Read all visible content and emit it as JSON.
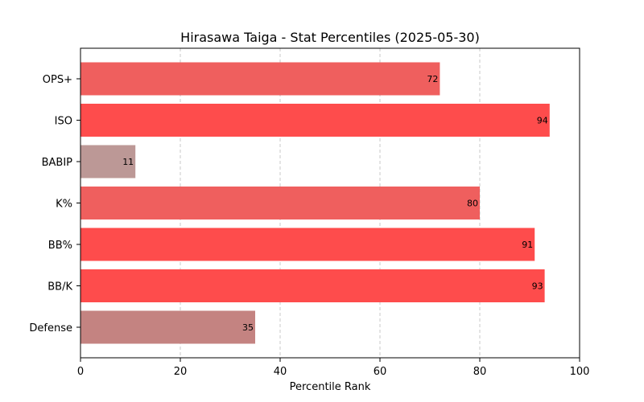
{
  "chart_data": {
    "type": "bar",
    "orientation": "horizontal",
    "title": "Hirasawa Taiga - Stat Percentiles (2025-05-30)",
    "xlabel": "Percentile Rank",
    "ylabel": "",
    "xlim": [
      0,
      100
    ],
    "x_ticks": [
      0,
      20,
      40,
      60,
      80,
      100
    ],
    "grid": "x-dashed",
    "categories": [
      "OPS+",
      "ISO",
      "BABIP",
      "K%",
      "BB%",
      "BB/K",
      "Defense"
    ],
    "values": [
      72,
      94,
      11,
      80,
      91,
      93,
      35
    ],
    "colors": [
      "#ef5f5e",
      "#fe4c4c",
      "#bc9896",
      "#ef5f5e",
      "#fe4c4c",
      "#fe4c4c",
      "#c48381"
    ]
  }
}
